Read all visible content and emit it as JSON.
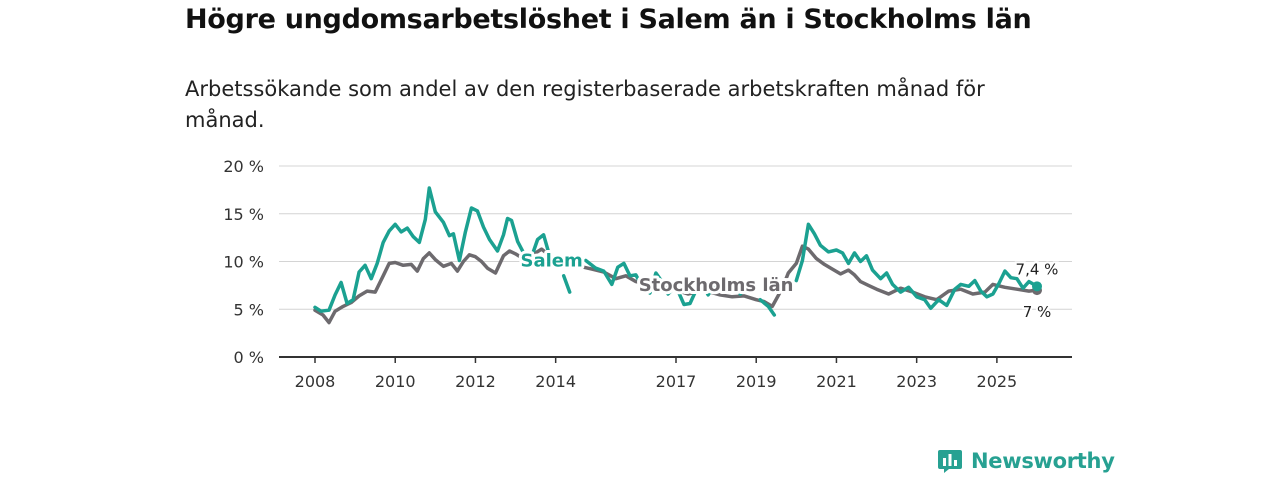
{
  "title": "Högre ungdomsarbetslöshet i Salem än i Stockholms län",
  "subtitle": "Arbetssökande som andel av den registerbaserade arbetskraften månad för månad.",
  "brand": {
    "name": "Newsworthy",
    "icon": "newsworthy-logo-icon",
    "color": "#27a192"
  },
  "chart_data": {
    "type": "line",
    "title": "Högre ungdomsarbetslöshet i Salem än i Stockholms län",
    "xlabel": "",
    "ylabel": "",
    "xlim": [
      2008.0,
      2026.0
    ],
    "ylim": [
      0,
      20
    ],
    "y_ticks": [
      0,
      5,
      10,
      15,
      20
    ],
    "y_tick_labels": [
      "0 %",
      "5 %",
      "10 %",
      "15 %",
      "20 %"
    ],
    "x_ticks": [
      2008,
      2010,
      2012,
      2014,
      2017,
      2019,
      2021,
      2023,
      2025
    ],
    "x_tick_labels": [
      "2008",
      "2010",
      "2012",
      "2014",
      "2017",
      "2019",
      "2021",
      "2023",
      "2025"
    ],
    "grid": true,
    "series": [
      {
        "name": "Stockholms län",
        "color": "#6d6a6e",
        "end_label": "7 %",
        "points": [
          [
            2008.0,
            4.9
          ],
          [
            2008.2,
            4.4
          ],
          [
            2008.35,
            3.6
          ],
          [
            2008.5,
            4.8
          ],
          [
            2008.7,
            5.3
          ],
          [
            2008.9,
            5.7
          ],
          [
            2009.1,
            6.4
          ],
          [
            2009.3,
            6.9
          ],
          [
            2009.5,
            6.8
          ],
          [
            2009.7,
            8.5
          ],
          [
            2009.85,
            9.8
          ],
          [
            2010.0,
            9.9
          ],
          [
            2010.2,
            9.6
          ],
          [
            2010.4,
            9.7
          ],
          [
            2010.55,
            9.0
          ],
          [
            2010.7,
            10.3
          ],
          [
            2010.85,
            10.9
          ],
          [
            2011.0,
            10.2
          ],
          [
            2011.2,
            9.5
          ],
          [
            2011.4,
            9.8
          ],
          [
            2011.55,
            9.0
          ],
          [
            2011.7,
            10.0
          ],
          [
            2011.85,
            10.7
          ],
          [
            2012.0,
            10.5
          ],
          [
            2012.15,
            10.0
          ],
          [
            2012.3,
            9.3
          ],
          [
            2012.5,
            8.8
          ],
          [
            2012.7,
            10.6
          ],
          [
            2012.85,
            11.1
          ],
          [
            2013.0,
            10.8
          ],
          [
            2013.15,
            10.4
          ],
          [
            2013.35,
            10.2
          ],
          [
            2013.5,
            10.9
          ],
          [
            2013.65,
            11.3
          ],
          [
            2013.8,
            10.8
          ],
          [
            2014.0,
            10.3
          ],
          [
            2014.3,
            9.7
          ],
          [
            2014.6,
            9.5
          ],
          [
            2014.9,
            9.2
          ],
          [
            2015.2,
            8.9
          ],
          [
            2015.5,
            8.2
          ],
          [
            2015.75,
            8.5
          ],
          [
            2016.0,
            7.9
          ],
          [
            2016.3,
            7.6
          ],
          [
            2016.6,
            7.4
          ],
          [
            2016.8,
            7.6
          ],
          [
            2017.0,
            7.0
          ],
          [
            2017.3,
            6.6
          ],
          [
            2017.6,
            6.9
          ],
          [
            2017.85,
            6.8
          ],
          [
            2018.1,
            6.5
          ],
          [
            2018.4,
            6.3
          ],
          [
            2018.7,
            6.4
          ],
          [
            2019.0,
            6.0
          ],
          [
            2019.2,
            5.8
          ],
          [
            2019.4,
            5.3
          ],
          [
            2019.65,
            7.2
          ],
          [
            2019.8,
            8.8
          ],
          [
            2020.0,
            9.8
          ],
          [
            2020.15,
            11.6
          ],
          [
            2020.3,
            11.3
          ],
          [
            2020.5,
            10.3
          ],
          [
            2020.7,
            9.7
          ],
          [
            2020.9,
            9.2
          ],
          [
            2021.1,
            8.7
          ],
          [
            2021.3,
            9.1
          ],
          [
            2021.45,
            8.6
          ],
          [
            2021.6,
            7.9
          ],
          [
            2021.8,
            7.5
          ],
          [
            2022.0,
            7.1
          ],
          [
            2022.3,
            6.6
          ],
          [
            2022.6,
            7.2
          ],
          [
            2022.9,
            6.8
          ],
          [
            2023.2,
            6.3
          ],
          [
            2023.5,
            6.0
          ],
          [
            2023.8,
            6.9
          ],
          [
            2024.1,
            7.1
          ],
          [
            2024.4,
            6.6
          ],
          [
            2024.7,
            6.8
          ],
          [
            2024.9,
            7.6
          ],
          [
            2025.2,
            7.3
          ],
          [
            2025.5,
            7.1
          ],
          [
            2025.8,
            6.9
          ],
          [
            2026.0,
            7.0
          ]
        ]
      },
      {
        "name": "Salem",
        "color": "#1ba191",
        "end_label": "7,4 %",
        "points": [
          [
            2008.0,
            5.2
          ],
          [
            2008.15,
            4.8
          ],
          [
            2008.35,
            4.9
          ],
          [
            2008.5,
            6.5
          ],
          [
            2008.65,
            7.8
          ],
          [
            2008.8,
            5.6
          ],
          [
            2008.95,
            6.0
          ],
          [
            2009.1,
            8.9
          ],
          [
            2009.25,
            9.6
          ],
          [
            2009.4,
            8.2
          ],
          [
            2009.55,
            9.8
          ],
          [
            2009.7,
            12.0
          ],
          [
            2009.85,
            13.2
          ],
          [
            2010.0,
            13.9
          ],
          [
            2010.15,
            13.1
          ],
          [
            2010.3,
            13.5
          ],
          [
            2010.45,
            12.6
          ],
          [
            2010.6,
            12.0
          ],
          [
            2010.75,
            14.4
          ],
          [
            2010.85,
            17.7
          ],
          [
            2011.0,
            15.2
          ],
          [
            2011.2,
            14.1
          ],
          [
            2011.35,
            12.7
          ],
          [
            2011.45,
            12.9
          ],
          [
            2011.6,
            10.1
          ],
          [
            2011.75,
            13.1
          ],
          [
            2011.9,
            15.6
          ],
          [
            2012.05,
            15.3
          ],
          [
            2012.2,
            13.6
          ],
          [
            2012.35,
            12.3
          ],
          [
            2012.55,
            11.1
          ],
          [
            2012.7,
            12.8
          ],
          [
            2012.8,
            14.5
          ],
          [
            2012.9,
            14.3
          ],
          [
            2013.05,
            12.1
          ],
          [
            2013.2,
            10.9
          ],
          [
            2013.3,
            null
          ],
          [
            2013.45,
            11.1
          ],
          [
            2013.55,
            12.3
          ],
          [
            2013.7,
            12.8
          ],
          [
            2013.85,
            10.6
          ],
          [
            2013.95,
            9.6
          ],
          [
            2014.1,
            null
          ],
          [
            2014.2,
            8.5
          ],
          [
            2014.35,
            6.8
          ],
          [
            2014.5,
            null
          ],
          [
            2014.75,
            10.1
          ],
          [
            2015.0,
            9.3
          ],
          [
            2015.2,
            9.0
          ],
          [
            2015.4,
            7.6
          ],
          [
            2015.55,
            9.4
          ],
          [
            2015.7,
            9.8
          ],
          [
            2015.85,
            8.5
          ],
          [
            2016.0,
            8.6
          ],
          [
            2016.15,
            7.4
          ],
          [
            2016.35,
            6.7
          ],
          [
            2016.5,
            8.8
          ],
          [
            2016.65,
            7.9
          ],
          [
            2016.8,
            6.6
          ],
          [
            2017.0,
            7.4
          ],
          [
            2017.2,
            5.5
          ],
          [
            2017.35,
            5.6
          ],
          [
            2017.5,
            7.0
          ],
          [
            2017.65,
            7.8
          ],
          [
            2017.8,
            6.5
          ],
          [
            2017.95,
            7.4
          ],
          [
            2018.05,
            null
          ],
          [
            2018.35,
            5.7
          ],
          [
            2018.55,
            null
          ],
          [
            2018.6,
            6.6
          ],
          [
            2018.8,
            7.5
          ],
          [
            2018.95,
            null
          ],
          [
            2019.1,
            6.0
          ],
          [
            2019.3,
            5.3
          ],
          [
            2019.45,
            4.4
          ],
          [
            2019.55,
            null
          ],
          [
            2020.0,
            8.0
          ],
          [
            2020.15,
            10.1
          ],
          [
            2020.3,
            13.9
          ],
          [
            2020.45,
            12.9
          ],
          [
            2020.6,
            11.7
          ],
          [
            2020.8,
            11.0
          ],
          [
            2021.0,
            11.2
          ],
          [
            2021.15,
            10.9
          ],
          [
            2021.3,
            9.8
          ],
          [
            2021.45,
            10.9
          ],
          [
            2021.6,
            10.0
          ],
          [
            2021.75,
            10.6
          ],
          [
            2021.9,
            9.1
          ],
          [
            2022.1,
            8.2
          ],
          [
            2022.25,
            8.8
          ],
          [
            2022.4,
            7.6
          ],
          [
            2022.6,
            6.8
          ],
          [
            2022.8,
            7.3
          ],
          [
            2023.0,
            6.3
          ],
          [
            2023.2,
            6.0
          ],
          [
            2023.35,
            5.1
          ],
          [
            2023.55,
            6.0
          ],
          [
            2023.75,
            5.4
          ],
          [
            2023.95,
            7.1
          ],
          [
            2024.1,
            7.6
          ],
          [
            2024.3,
            7.4
          ],
          [
            2024.45,
            8.0
          ],
          [
            2024.6,
            6.9
          ],
          [
            2024.75,
            6.3
          ],
          [
            2024.9,
            6.6
          ],
          [
            2025.05,
            7.7
          ],
          [
            2025.2,
            9.0
          ],
          [
            2025.35,
            8.3
          ],
          [
            2025.5,
            8.2
          ],
          [
            2025.65,
            7.2
          ],
          [
            2025.8,
            7.9
          ],
          [
            2026.0,
            7.4
          ]
        ]
      }
    ],
    "annotations": [
      {
        "text": "Salem",
        "series": "Salem",
        "at_x": 2013.9,
        "at_y": 9.5
      },
      {
        "text": "Stockholms län",
        "series": "Stockholms län",
        "at_x": 2018.0,
        "at_y": 6.9
      }
    ]
  }
}
